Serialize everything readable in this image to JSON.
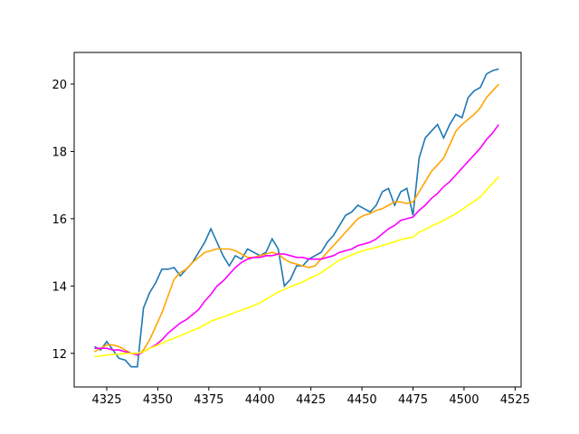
{
  "chart_data": {
    "type": "line",
    "x": [
      4319,
      4322,
      4325,
      4328,
      4331,
      4334,
      4337,
      4340,
      4343,
      4346,
      4349,
      4352,
      4355,
      4358,
      4361,
      4364,
      4367,
      4370,
      4373,
      4376,
      4379,
      4382,
      4385,
      4388,
      4391,
      4394,
      4397,
      4400,
      4403,
      4406,
      4409,
      4412,
      4415,
      4418,
      4421,
      4424,
      4427,
      4430,
      4433,
      4436,
      4439,
      4442,
      4445,
      4448,
      4451,
      4454,
      4457,
      4460,
      4463,
      4466,
      4469,
      4472,
      4475,
      4478,
      4481,
      4484,
      4487,
      4490,
      4493,
      4496,
      4499,
      4502,
      4505,
      4508,
      4511,
      4514,
      4517
    ],
    "series": [
      {
        "color": "#1f77b4",
        "values": [
          12.2,
          12.1,
          12.35,
          12.1,
          11.85,
          11.8,
          11.6,
          11.6,
          13.35,
          13.8,
          14.1,
          14.5,
          14.5,
          14.55,
          14.3,
          14.5,
          14.7,
          15.0,
          15.3,
          15.7,
          15.3,
          14.9,
          14.6,
          14.9,
          14.8,
          15.1,
          15.0,
          14.9,
          15.0,
          15.4,
          15.1,
          14.0,
          14.2,
          14.6,
          14.6,
          14.8,
          14.9,
          15.0,
          15.3,
          15.5,
          15.8,
          16.1,
          16.2,
          16.4,
          16.3,
          16.2,
          16.4,
          16.8,
          16.9,
          16.4,
          16.8,
          16.9,
          16.1,
          17.8,
          18.4,
          18.6,
          18.8,
          18.4,
          18.8,
          19.1,
          19.0,
          19.6,
          19.8,
          19.9,
          20.3,
          20.4,
          20.45
        ]
      },
      {
        "color": "orange",
        "values": [
          12.05,
          12.15,
          12.25,
          12.25,
          12.2,
          12.1,
          12.0,
          11.95,
          12.1,
          12.4,
          12.8,
          13.2,
          13.7,
          14.2,
          14.4,
          14.5,
          14.7,
          14.85,
          15.0,
          15.05,
          15.1,
          15.1,
          15.1,
          15.05,
          14.95,
          14.85,
          14.85,
          14.9,
          14.95,
          15.0,
          14.95,
          14.8,
          14.7,
          14.65,
          14.6,
          14.55,
          14.6,
          14.8,
          15.0,
          15.2,
          15.4,
          15.6,
          15.8,
          16.0,
          16.1,
          16.15,
          16.25,
          16.3,
          16.4,
          16.5,
          16.5,
          16.45,
          16.5,
          16.8,
          17.1,
          17.4,
          17.6,
          17.8,
          18.2,
          18.6,
          18.8,
          18.95,
          19.1,
          19.3,
          19.6,
          19.8,
          20.0
        ]
      },
      {
        "color": "magenta",
        "values": [
          12.15,
          12.15,
          12.15,
          12.1,
          12.1,
          12.05,
          12.0,
          11.95,
          12.05,
          12.15,
          12.25,
          12.4,
          12.6,
          12.75,
          12.9,
          13.0,
          13.15,
          13.3,
          13.55,
          13.75,
          14.0,
          14.15,
          14.35,
          14.55,
          14.7,
          14.8,
          14.85,
          14.85,
          14.9,
          14.9,
          14.95,
          14.95,
          14.9,
          14.85,
          14.85,
          14.8,
          14.8,
          14.8,
          14.85,
          14.9,
          15.0,
          15.05,
          15.1,
          15.2,
          15.25,
          15.3,
          15.4,
          15.55,
          15.7,
          15.8,
          15.95,
          16.0,
          16.05,
          16.25,
          16.4,
          16.6,
          16.75,
          16.95,
          17.1,
          17.3,
          17.5,
          17.7,
          17.9,
          18.1,
          18.35,
          18.55,
          18.8
        ]
      },
      {
        "color": "yellow",
        "values": [
          11.9,
          11.92,
          11.95,
          11.97,
          11.98,
          12.0,
          12.0,
          12.0,
          12.05,
          12.15,
          12.22,
          12.3,
          12.38,
          12.45,
          12.52,
          12.6,
          12.68,
          12.75,
          12.85,
          12.95,
          13.02,
          13.08,
          13.15,
          13.22,
          13.28,
          13.35,
          13.42,
          13.5,
          13.6,
          13.72,
          13.82,
          13.9,
          13.98,
          14.05,
          14.12,
          14.22,
          14.3,
          14.4,
          14.52,
          14.65,
          14.77,
          14.85,
          14.92,
          15.0,
          15.06,
          15.1,
          15.15,
          15.2,
          15.26,
          15.32,
          15.38,
          15.42,
          15.45,
          15.6,
          15.68,
          15.78,
          15.86,
          15.95,
          16.05,
          16.15,
          16.27,
          16.4,
          16.52,
          16.65,
          16.85,
          17.05,
          17.25
        ]
      }
    ],
    "xlim": [
      4309.05,
      4527.95
    ],
    "ylim": [
      11.0,
      20.94
    ],
    "xticks": [
      4325,
      4350,
      4375,
      4400,
      4425,
      4450,
      4475,
      4500,
      4525
    ],
    "yticks": [
      12,
      14,
      16,
      18,
      20
    ]
  }
}
